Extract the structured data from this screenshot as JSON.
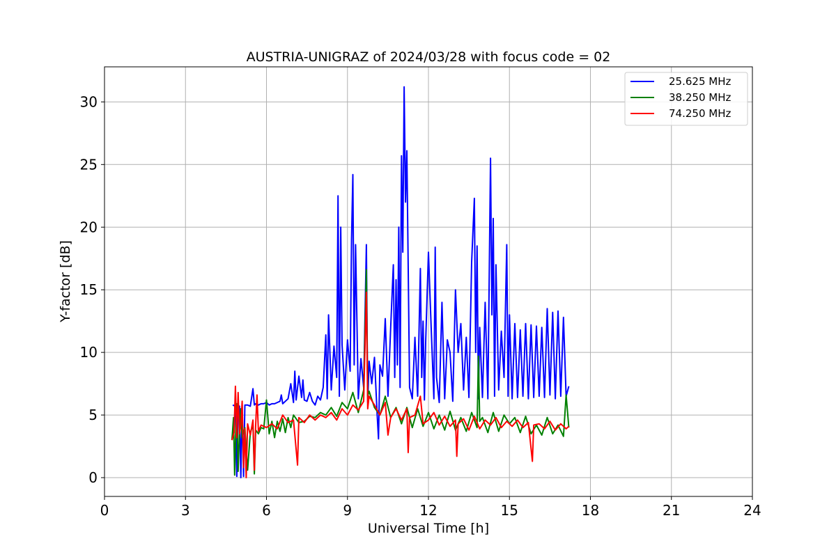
{
  "chart_data": {
    "type": "line",
    "title": "AUSTRIA-UNIGRAZ of 2024/03/28 with focus code = 02",
    "xlabel": "Universal Time [h]",
    "ylabel": "Y-factor [dB]",
    "xlim": [
      0,
      24
    ],
    "ylim": [
      -1.5,
      32.8
    ],
    "x_ticks": [
      0,
      3,
      6,
      9,
      12,
      15,
      18,
      21,
      24
    ],
    "x_tick_labels": [
      "0",
      "3",
      "6",
      "9",
      "12",
      "15",
      "18",
      "21",
      "24"
    ],
    "y_ticks": [
      0,
      5,
      10,
      15,
      20,
      25,
      30
    ],
    "y_tick_labels": [
      "0",
      "5",
      "10",
      "15",
      "20",
      "25",
      "30"
    ],
    "grid": true,
    "legend_position": "top-right",
    "series": [
      {
        "name": "25.625 MHz",
        "color": "#0000ff",
        "x": [
          4.75,
          4.85,
          4.9,
          4.95,
          5.0,
          5.05,
          5.1,
          5.15,
          5.2,
          5.3,
          5.4,
          5.5,
          5.55,
          5.6,
          5.7,
          5.8,
          5.9,
          6.0,
          6.1,
          6.2,
          6.3,
          6.4,
          6.5,
          6.55,
          6.6,
          6.7,
          6.8,
          6.9,
          7.0,
          7.05,
          7.1,
          7.2,
          7.3,
          7.35,
          7.4,
          7.5,
          7.6,
          7.7,
          7.8,
          7.9,
          8.0,
          8.1,
          8.2,
          8.25,
          8.3,
          8.4,
          8.5,
          8.6,
          8.65,
          8.7,
          8.75,
          8.8,
          8.9,
          9.0,
          9.1,
          9.15,
          9.2,
          9.25,
          9.3,
          9.4,
          9.5,
          9.6,
          9.7,
          9.75,
          9.8,
          9.9,
          10.0,
          10.1,
          10.15,
          10.2,
          10.3,
          10.4,
          10.5,
          10.6,
          10.7,
          10.75,
          10.8,
          10.85,
          10.9,
          10.95,
          11.0,
          11.05,
          11.1,
          11.15,
          11.2,
          11.25,
          11.3,
          11.4,
          11.5,
          11.6,
          11.7,
          11.75,
          11.8,
          11.85,
          11.9,
          12.0,
          12.1,
          12.2,
          12.25,
          12.3,
          12.4,
          12.5,
          12.6,
          12.7,
          12.8,
          12.9,
          13.0,
          13.1,
          13.2,
          13.3,
          13.4,
          13.5,
          13.6,
          13.7,
          13.75,
          13.8,
          13.85,
          13.9,
          14.0,
          14.1,
          14.2,
          14.3,
          14.35,
          14.4,
          14.45,
          14.5,
          14.6,
          14.7,
          14.8,
          14.9,
          14.95,
          15.0,
          15.1,
          15.2,
          15.3,
          15.4,
          15.5,
          15.6,
          15.7,
          15.8,
          15.9,
          16.0,
          16.1,
          16.2,
          16.3,
          16.4,
          16.5,
          16.6,
          16.7,
          16.8,
          16.9,
          17.0,
          17.1,
          17.2
        ],
        "values": [
          5.8,
          5.7,
          0.1,
          5.8,
          5.7,
          0.0,
          5.8,
          0.1,
          5.8,
          5.8,
          5.7,
          7.1,
          5.8,
          5.9,
          5.8,
          5.9,
          5.9,
          6.0,
          5.8,
          5.9,
          5.9,
          6.0,
          6.1,
          6.6,
          5.9,
          6.1,
          6.3,
          7.5,
          6.0,
          8.5,
          6.2,
          8.1,
          6.4,
          7.8,
          6.2,
          6.1,
          6.8,
          6.1,
          5.8,
          6.5,
          6.2,
          7.2,
          11.4,
          6.3,
          13.0,
          7.0,
          10.5,
          8.0,
          22.5,
          6.5,
          20.0,
          10.6,
          7.0,
          11.0,
          8.5,
          19.0,
          24.2,
          9.0,
          18.6,
          6.3,
          9.5,
          7.2,
          18.6,
          6.0,
          9.3,
          7.5,
          9.6,
          5.0,
          3.1,
          9.0,
          8.1,
          12.7,
          6.5,
          12.0,
          17.0,
          8.0,
          15.8,
          9.0,
          20.0,
          7.2,
          25.7,
          18.0,
          31.2,
          22.0,
          26.1,
          17.0,
          7.2,
          6.3,
          11.2,
          6.5,
          16.7,
          8.0,
          12.5,
          6.2,
          11.0,
          18.0,
          12.0,
          6.3,
          18.4,
          8.0,
          6.0,
          14.0,
          6.3,
          11.0,
          10.0,
          6.1,
          15.0,
          10.0,
          12.3,
          7.0,
          11.2,
          6.4,
          17.2,
          22.3,
          10.0,
          18.5,
          6.3,
          12.0,
          6.4,
          14.0,
          6.3,
          25.5,
          13.0,
          20.7,
          6.5,
          17.0,
          7.0,
          11.7,
          8.0,
          18.6,
          6.5,
          13.0,
          6.3,
          12.3,
          6.4,
          11.8,
          6.5,
          12.3,
          6.3,
          12.2,
          6.4,
          12.1,
          6.5,
          12.0,
          6.4,
          13.5,
          6.6,
          13.2,
          6.3,
          13.3,
          6.5,
          12.8,
          6.5,
          7.3
        ]
      },
      {
        "name": "38.250 MHz",
        "color": "#008000",
        "x": [
          4.72,
          4.78,
          4.82,
          4.86,
          4.9,
          4.95,
          5.0,
          5.05,
          5.1,
          5.2,
          5.3,
          5.4,
          5.5,
          5.55,
          5.6,
          5.7,
          5.8,
          5.9,
          6.0,
          6.1,
          6.2,
          6.3,
          6.4,
          6.5,
          6.6,
          6.7,
          6.8,
          6.9,
          7.0,
          7.2,
          7.4,
          7.6,
          7.8,
          8.0,
          8.2,
          8.4,
          8.6,
          8.8,
          9.0,
          9.2,
          9.4,
          9.6,
          9.7,
          9.75,
          9.8,
          10.0,
          10.2,
          10.4,
          10.6,
          10.8,
          11.0,
          11.2,
          11.4,
          11.6,
          11.8,
          12.0,
          12.2,
          12.4,
          12.6,
          12.8,
          13.0,
          13.2,
          13.4,
          13.6,
          13.8,
          13.85,
          13.9,
          14.0,
          14.2,
          14.4,
          14.6,
          14.8,
          15.0,
          15.2,
          15.4,
          15.6,
          15.8,
          16.0,
          16.2,
          16.4,
          16.6,
          16.8,
          17.0,
          17.1,
          17.2
        ],
        "values": [
          3.0,
          4.8,
          0.2,
          3.5,
          5.9,
          0.5,
          3.8,
          5.5,
          3.2,
          4.0,
          0.6,
          3.6,
          4.2,
          0.3,
          3.8,
          3.5,
          4.0,
          3.9,
          6.2,
          3.5,
          4.5,
          3.2,
          4.5,
          3.7,
          4.7,
          3.6,
          4.8,
          4.0,
          5.0,
          4.4,
          4.5,
          4.9,
          4.8,
          5.2,
          5.0,
          5.6,
          4.9,
          6.0,
          5.5,
          6.8,
          5.2,
          7.0,
          16.6,
          6.5,
          6.9,
          5.6,
          5.0,
          6.5,
          4.8,
          5.6,
          4.3,
          5.6,
          4.0,
          5.5,
          4.1,
          5.2,
          3.9,
          5.0,
          3.8,
          5.3,
          3.8,
          4.8,
          3.7,
          5.2,
          4.0,
          9.7,
          4.5,
          4.8,
          3.6,
          5.2,
          3.7,
          5.0,
          4.3,
          4.8,
          3.6,
          4.9,
          3.5,
          4.2,
          3.4,
          4.8,
          3.5,
          4.2,
          3.3,
          6.6,
          4.0
        ]
      },
      {
        "name": "74.250 MHz",
        "color": "#ff0000",
        "x": [
          4.72,
          4.8,
          4.85,
          4.9,
          4.95,
          5.0,
          5.05,
          5.1,
          5.15,
          5.2,
          5.25,
          5.3,
          5.4,
          5.5,
          5.55,
          5.6,
          5.65,
          5.7,
          5.8,
          6.0,
          6.2,
          6.4,
          6.6,
          6.8,
          7.0,
          7.15,
          7.2,
          7.4,
          7.6,
          7.8,
          8.0,
          8.2,
          8.4,
          8.6,
          8.8,
          9.0,
          9.2,
          9.4,
          9.6,
          9.7,
          9.75,
          9.8,
          10.0,
          10.2,
          10.4,
          10.5,
          10.6,
          10.8,
          11.0,
          11.2,
          11.25,
          11.3,
          11.5,
          11.7,
          11.8,
          12.0,
          12.2,
          12.4,
          12.6,
          12.8,
          13.0,
          13.05,
          13.1,
          13.3,
          13.5,
          13.7,
          13.9,
          14.1,
          14.3,
          14.5,
          14.7,
          14.9,
          15.1,
          15.3,
          15.5,
          15.7,
          15.85,
          15.9,
          16.1,
          16.3,
          16.5,
          16.7,
          16.9,
          17.1,
          17.2
        ],
        "values": [
          3.0,
          3.6,
          7.3,
          3.2,
          6.8,
          3.5,
          4.2,
          6.1,
          0.8,
          3.9,
          0.0,
          4.3,
          3.4,
          4.6,
          0.6,
          4.2,
          6.6,
          3.7,
          4.2,
          4.0,
          4.3,
          3.9,
          5.0,
          4.4,
          4.6,
          1.0,
          4.8,
          4.4,
          5.0,
          4.6,
          5.0,
          4.8,
          5.2,
          4.6,
          5.5,
          5.0,
          5.8,
          5.4,
          6.1,
          14.8,
          5.5,
          6.5,
          5.8,
          5.0,
          6.0,
          3.4,
          4.8,
          5.5,
          4.6,
          5.5,
          2.0,
          4.8,
          5.0,
          6.5,
          4.3,
          4.6,
          5.2,
          4.2,
          4.9,
          4.1,
          4.6,
          1.7,
          4.3,
          4.7,
          3.8,
          4.9,
          3.9,
          4.6,
          4.2,
          4.8,
          4.0,
          4.5,
          4.1,
          4.6,
          4.0,
          4.4,
          1.3,
          4.2,
          4.3,
          3.9,
          4.5,
          3.8,
          4.3,
          3.9,
          4.1
        ]
      }
    ]
  }
}
